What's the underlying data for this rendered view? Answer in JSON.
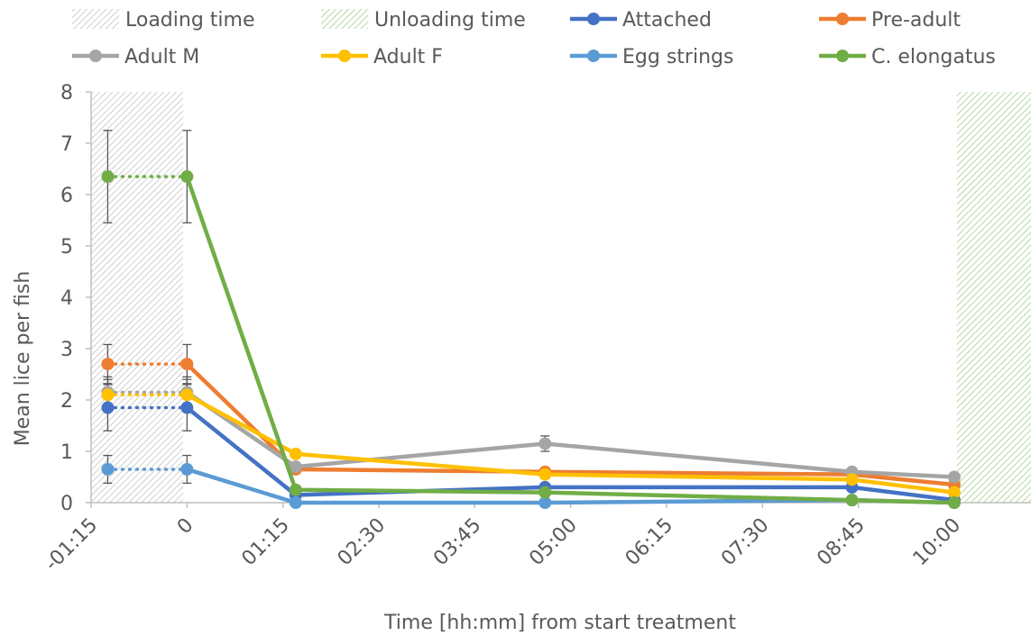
{
  "chart_data": {
    "type": "line",
    "title": "",
    "xlabel": "Time [hh:mm] from start treatment",
    "ylabel": "Mean lice per fish",
    "xlim_minutes": [
      -75,
      660
    ],
    "ylim": [
      0,
      8
    ],
    "x_tick_labels": [
      "-01:15",
      "0",
      "01:15",
      "02:30",
      "03:45",
      "05:00",
      "06:15",
      "07:30",
      "08:45",
      "10:00"
    ],
    "x_tick_minutes": [
      -75,
      0,
      75,
      150,
      225,
      300,
      375,
      450,
      525,
      600
    ],
    "y_tick_labels": [
      "0",
      "1",
      "2",
      "3",
      "4",
      "5",
      "6",
      "7",
      "8"
    ],
    "grid": false,
    "legend_position": "top",
    "shaded_regions": [
      {
        "name": "Loading time",
        "x_minutes": [
          -75,
          -3
        ],
        "color": "#d9d9d9",
        "pattern": "diagonal"
      },
      {
        "name": "Unloading time",
        "x_minutes": [
          602,
          660
        ],
        "color": "#a9d18e",
        "pattern": "diagonal"
      }
    ],
    "series": [
      {
        "name": "Attached",
        "color": "#4472c4",
        "x_minutes": [
          0,
          85,
          280,
          520,
          600
        ],
        "values": [
          1.85,
          0.15,
          0.3,
          0.3,
          0.05
        ],
        "pre_value": 1.85,
        "error": [
          0.45,
          0,
          0,
          0,
          0
        ]
      },
      {
        "name": "Pre-adult",
        "color": "#ed7d31",
        "x_minutes": [
          0,
          85,
          280,
          520,
          600
        ],
        "values": [
          2.7,
          0.65,
          0.6,
          0.55,
          0.35
        ],
        "pre_value": 2.7,
        "error": [
          0.38,
          0.05,
          0.05,
          0.05,
          0.05
        ]
      },
      {
        "name": "Adult M",
        "color": "#a5a5a5",
        "x_minutes": [
          0,
          85,
          280,
          520,
          600
        ],
        "values": [
          2.15,
          0.7,
          1.15,
          0.6,
          0.5
        ],
        "pre_value": 2.15,
        "error": [
          0.3,
          0.05,
          0.15,
          0.05,
          0.05
        ]
      },
      {
        "name": "Adult F",
        "color": "#ffc000",
        "x_minutes": [
          0,
          85,
          280,
          520,
          600
        ],
        "values": [
          2.1,
          0.95,
          0.55,
          0.45,
          0.2
        ],
        "pre_value": 2.1,
        "error": [
          0.3,
          0.05,
          0.05,
          0.05,
          0.05
        ]
      },
      {
        "name": "Egg strings",
        "color": "#5b9bd5",
        "x_minutes": [
          0,
          85,
          280,
          520,
          600
        ],
        "values": [
          0.65,
          0.0,
          0.0,
          0.05,
          0.0
        ],
        "pre_value": 0.65,
        "error": [
          0.27,
          0,
          0,
          0,
          0
        ]
      },
      {
        "name": "C. elongatus",
        "color": "#70ad47",
        "x_minutes": [
          0,
          85,
          280,
          520,
          600
        ],
        "values": [
          6.35,
          0.25,
          0.2,
          0.05,
          0.0
        ],
        "pre_value": 6.35,
        "error": [
          0.9,
          0,
          0,
          0,
          0
        ]
      }
    ],
    "pre_x_minutes": -62
  }
}
